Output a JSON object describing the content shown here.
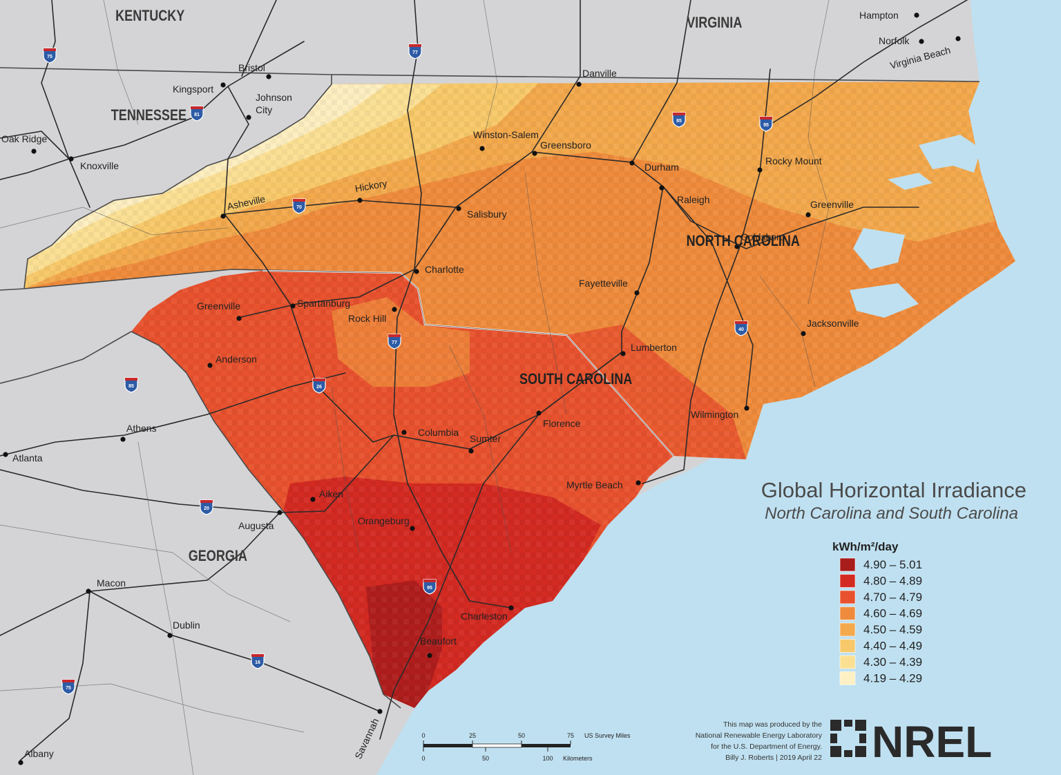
{
  "states": [
    {
      "name": "KENTUCKY"
    },
    {
      "name": "VIRGINIA"
    },
    {
      "name": "TENNESSEE"
    },
    {
      "name": "NORTH CAROLINA"
    },
    {
      "name": "SOUTH CAROLINA"
    },
    {
      "name": "GEORGIA"
    }
  ],
  "cities": [
    {
      "name": "Hampton"
    },
    {
      "name": "Norfolk"
    },
    {
      "name": "Virginia Beach"
    },
    {
      "name": "Bristol"
    },
    {
      "name": "Kingsport"
    },
    {
      "name": "Johnson"
    },
    {
      "name": "City"
    },
    {
      "name": "Danville"
    },
    {
      "name": "Oak Ridge"
    },
    {
      "name": "Knoxville"
    },
    {
      "name": "Winston-Salem"
    },
    {
      "name": "Greensboro"
    },
    {
      "name": "Durham"
    },
    {
      "name": "Rocky Mount"
    },
    {
      "name": "Raleigh"
    },
    {
      "name": "Hickory"
    },
    {
      "name": "Asheville"
    },
    {
      "name": "Salisbury"
    },
    {
      "name": "Greenville"
    },
    {
      "name": "Goldsboro"
    },
    {
      "name": "Charlotte"
    },
    {
      "name": "Fayetteville"
    },
    {
      "name": "Greenville"
    },
    {
      "name": "Spartanburg"
    },
    {
      "name": "Rock Hill"
    },
    {
      "name": "Jacksonville"
    },
    {
      "name": "Lumberton"
    },
    {
      "name": "Anderson"
    },
    {
      "name": "Wilmington"
    },
    {
      "name": "Florence"
    },
    {
      "name": "Columbia"
    },
    {
      "name": "Sumter"
    },
    {
      "name": "Athens"
    },
    {
      "name": "Atlanta"
    },
    {
      "name": "Myrtle Beach"
    },
    {
      "name": "Aiken"
    },
    {
      "name": "Orangeburg"
    },
    {
      "name": "Augusta"
    },
    {
      "name": "Macon"
    },
    {
      "name": "Charleston"
    },
    {
      "name": "Beaufort"
    },
    {
      "name": "Dublin"
    },
    {
      "name": "Savannah"
    },
    {
      "name": "Albany"
    }
  ],
  "highways": [
    {
      "number": "75"
    },
    {
      "number": "77"
    },
    {
      "number": "81"
    },
    {
      "number": "85"
    },
    {
      "number": "95"
    },
    {
      "number": "70"
    },
    {
      "number": "77"
    },
    {
      "number": "40"
    },
    {
      "number": "85"
    },
    {
      "number": "26"
    },
    {
      "number": "20"
    },
    {
      "number": "95"
    },
    {
      "number": "16"
    },
    {
      "number": "75"
    }
  ],
  "title": {
    "main": "Global Horizontal Irradiance",
    "subtitle": "North Carolina and South Carolina"
  },
  "legend": {
    "unit": "kWh/m²/day",
    "classes": [
      {
        "label": "4.90 – 5.01",
        "color": "#a81c1c"
      },
      {
        "label": "4.80 – 4.89",
        "color": "#d32a22"
      },
      {
        "label": "4.70 – 4.79",
        "color": "#e8522e"
      },
      {
        "label": "4.60 – 4.69",
        "color": "#ef8b3c"
      },
      {
        "label": "4.50 – 4.59",
        "color": "#f4a94d"
      },
      {
        "label": "4.40 – 4.49",
        "color": "#f8c96a"
      },
      {
        "label": "4.30 – 4.39",
        "color": "#fbe094"
      },
      {
        "label": "4.19 – 4.29",
        "color": "#fdf0c4"
      }
    ]
  },
  "scale": {
    "miles_ticks": [
      "0",
      "25",
      "50",
      "75"
    ],
    "miles_unit": "US Survey Miles",
    "km_ticks": [
      "0",
      "50",
      "100"
    ],
    "km_unit": "Kilometers"
  },
  "credit": [
    "This map was produced by the",
    "National Renewable Energy Laboratory",
    "for the U.S. Department of Energy.",
    "Billy J. Roberts | 2019 April 22"
  ],
  "logo": {
    "text": "NREL"
  },
  "colors": {
    "ocean": "#bfe0f0",
    "land": "#d4d4d6",
    "state_border": "#4a4a4a",
    "road": "#2a2a2a",
    "interstate_shield": "#2d5ba6"
  }
}
